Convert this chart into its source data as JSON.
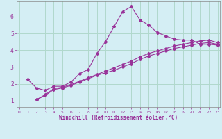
{
  "xlabel": "Windchill (Refroidissement éolien,°C)",
  "bg_color": "#d4eef4",
  "grid_color": "#b0d8cc",
  "line_color": "#993399",
  "x_ticks": [
    0,
    1,
    2,
    3,
    4,
    5,
    6,
    7,
    8,
    9,
    10,
    11,
    12,
    13,
    14,
    15,
    16,
    17,
    18,
    19,
    20,
    21,
    22,
    23
  ],
  "y_ticks": [
    1,
    2,
    3,
    4,
    5,
    6
  ],
  "xlim": [
    -0.3,
    23.3
  ],
  "ylim": [
    0.6,
    6.9
  ],
  "line1_x": [
    1,
    2,
    3,
    4,
    5,
    6,
    7,
    8,
    9,
    10,
    11,
    12,
    13,
    14,
    15,
    16,
    17,
    18,
    19,
    20,
    21,
    22,
    23
  ],
  "line1_y": [
    2.25,
    1.75,
    1.6,
    1.85,
    1.85,
    2.1,
    2.6,
    2.85,
    3.8,
    4.5,
    5.4,
    6.3,
    6.6,
    5.8,
    5.5,
    5.05,
    4.85,
    4.65,
    4.6,
    4.6,
    4.35,
    4.35,
    4.3
  ],
  "line2_x": [
    2,
    3,
    4,
    5,
    6,
    7,
    8,
    9,
    10,
    11,
    12,
    13,
    14,
    15,
    16,
    17,
    18,
    19,
    20,
    21,
    22,
    23
  ],
  "line2_y": [
    1.05,
    1.3,
    1.65,
    1.75,
    1.9,
    2.1,
    2.3,
    2.5,
    2.65,
    2.8,
    3.0,
    3.2,
    3.45,
    3.65,
    3.8,
    3.95,
    4.1,
    4.2,
    4.3,
    4.4,
    4.45,
    4.35
  ],
  "line3_x": [
    2,
    3,
    4,
    5,
    6,
    7,
    8,
    9,
    10,
    11,
    12,
    13,
    14,
    15,
    16,
    17,
    18,
    19,
    20,
    21,
    22,
    23
  ],
  "line3_y": [
    1.05,
    1.35,
    1.7,
    1.8,
    1.95,
    2.15,
    2.35,
    2.55,
    2.75,
    2.95,
    3.15,
    3.35,
    3.6,
    3.8,
    3.95,
    4.1,
    4.25,
    4.35,
    4.45,
    4.55,
    4.6,
    4.45
  ],
  "marker": "D",
  "markersize": 2.0,
  "linewidth": 0.8,
  "xlabel_fontsize": 5.5,
  "tick_fontsize_x": 4.2,
  "tick_fontsize_y": 5.5
}
